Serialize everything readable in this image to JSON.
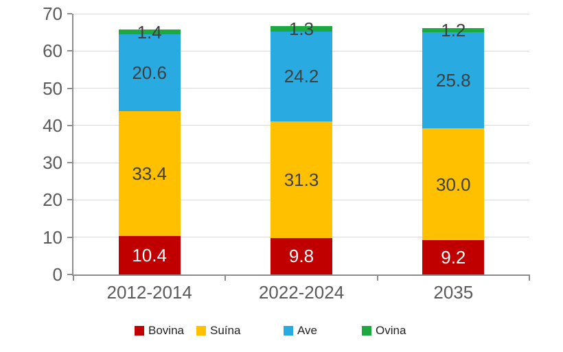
{
  "chart_data": {
    "type": "bar",
    "stacked": true,
    "title": "",
    "xlabel": "",
    "ylabel": "",
    "categories": [
      "2012-2014",
      "2022-2024",
      "2035"
    ],
    "series": [
      {
        "name": "Bovina",
        "color": "#c00000",
        "label_color": "#ffffff",
        "values": [
          10.4,
          9.8,
          9.2
        ],
        "labels": [
          "10.4",
          "9.8",
          "9.2"
        ]
      },
      {
        "name": "Suína",
        "color": "#ffc000",
        "label_color": "#3f3f3f",
        "values": [
          33.4,
          31.3,
          30.0
        ],
        "labels": [
          "33.4",
          "31.3",
          "30.0"
        ]
      },
      {
        "name": "Ave",
        "color": "#29abe2",
        "label_color": "#3f3f3f",
        "values": [
          20.6,
          24.2,
          25.8
        ],
        "labels": [
          "20.6",
          "24.2",
          "25.8"
        ]
      },
      {
        "name": "Ovina",
        "color": "#1ba940",
        "label_color": "#3f3f3f",
        "values": [
          1.4,
          1.3,
          1.2
        ],
        "labels": [
          "1.4",
          "1.3",
          "1.2"
        ]
      }
    ],
    "ylim": [
      0,
      70
    ],
    "yticks": [
      0,
      10,
      20,
      30,
      40,
      50,
      60,
      70
    ],
    "grid": true,
    "legend_position": "bottom"
  },
  "colors": {
    "axis": "#8c8c8c",
    "gridline": "#d9d9d9",
    "tick_label": "#595959",
    "background": "#ffffff"
  }
}
